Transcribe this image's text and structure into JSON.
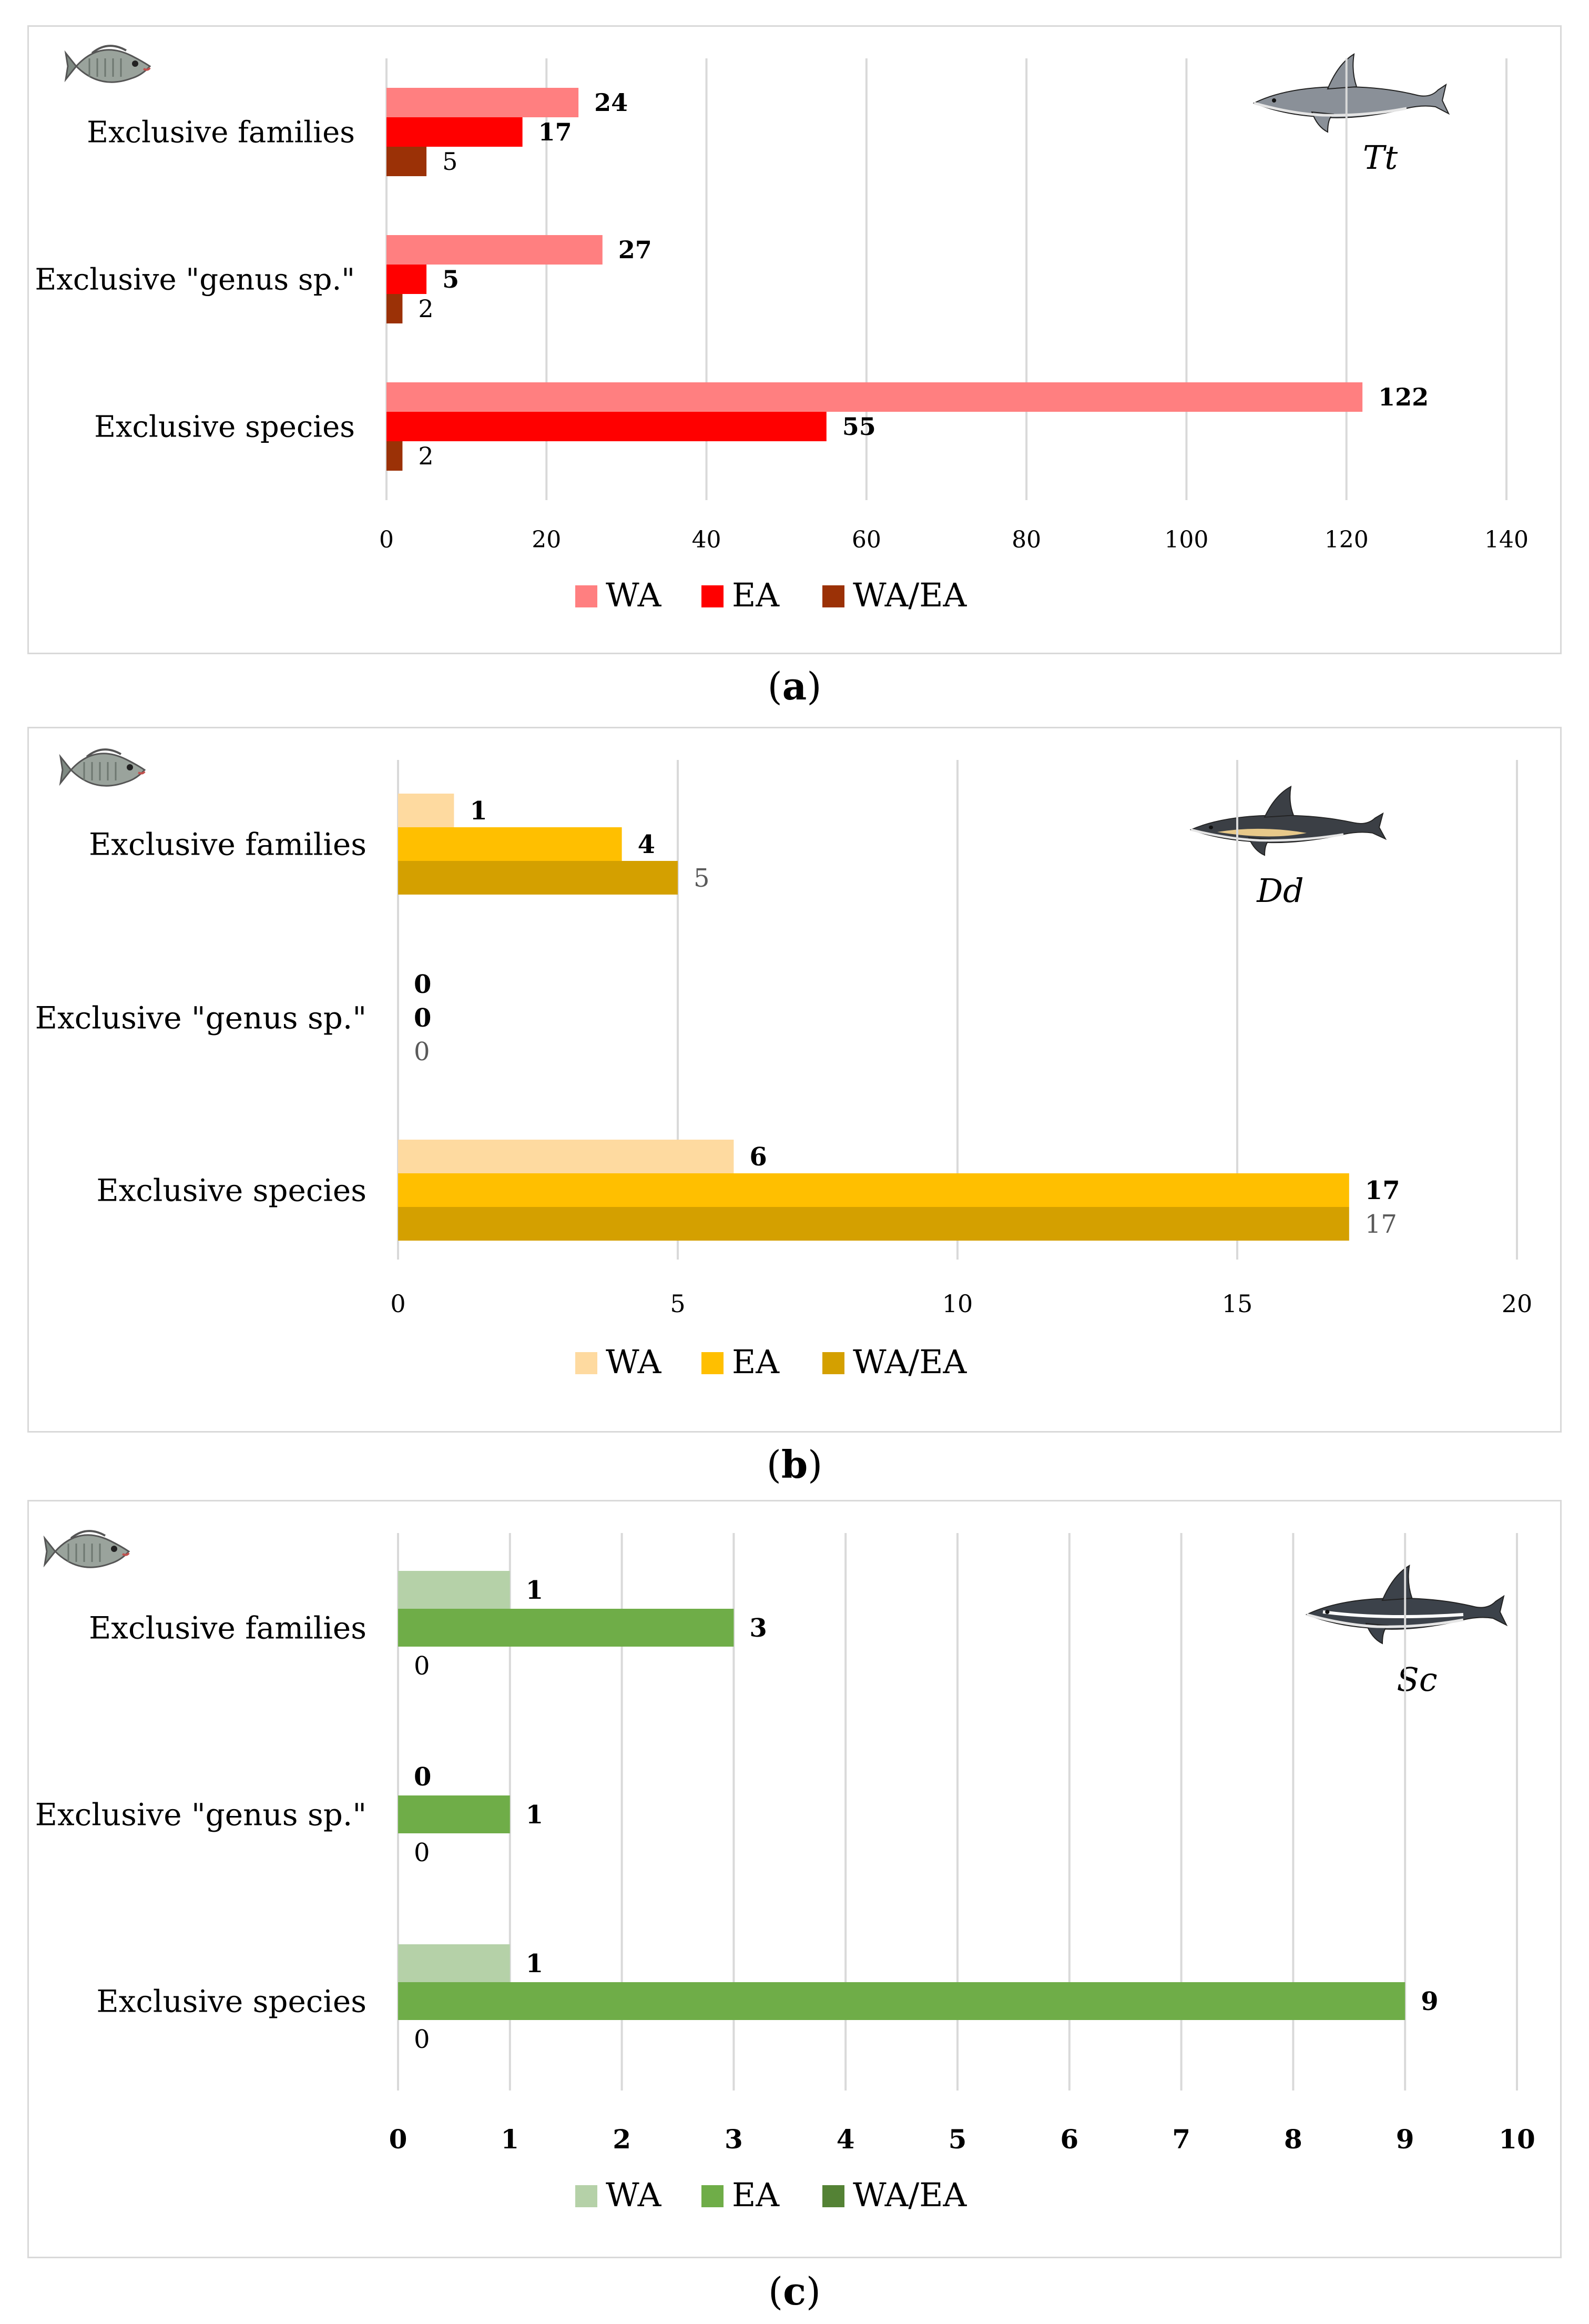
{
  "panels": [
    {
      "caption_letter": "a",
      "species_label": "Tt",
      "colors": [
        "#ff7f80",
        "#ff0000",
        "#9b3106"
      ],
      "chart_data": {
        "type": "bar",
        "orientation": "horizontal",
        "categories": [
          "Exclusive families",
          "Exclusive \"genus sp.\"",
          "Exclusive species"
        ],
        "series": [
          {
            "name": "WA",
            "values": [
              24,
              27,
              122
            ]
          },
          {
            "name": "EA",
            "values": [
              17,
              5,
              55
            ]
          },
          {
            "name": "WA/EA",
            "values": [
              5,
              2,
              2
            ]
          }
        ],
        "xlim": [
          0,
          140
        ],
        "xticks": [
          0,
          20,
          40,
          60,
          80,
          100,
          120,
          140
        ],
        "grid": true,
        "legend": "bottom"
      }
    },
    {
      "caption_letter": "b",
      "species_label": "Dd",
      "colors": [
        "#fedaa0",
        "#ffbf00",
        "#d4a000"
      ],
      "chart_data": {
        "type": "bar",
        "orientation": "horizontal",
        "categories": [
          "Exclusive families",
          "Exclusive \"genus sp.\"",
          "Exclusive species"
        ],
        "series": [
          {
            "name": "WA",
            "values": [
              1,
              0,
              6
            ]
          },
          {
            "name": "EA",
            "values": [
              4,
              0,
              17
            ]
          },
          {
            "name": "WA/EA",
            "values": [
              5,
              0,
              17
            ]
          }
        ],
        "xlim": [
          0,
          20
        ],
        "xticks": [
          0,
          5,
          10,
          15,
          20
        ],
        "grid": true,
        "legend": "bottom"
      }
    },
    {
      "caption_letter": "c",
      "species_label": "Sc",
      "colors": [
        "#b5d1a8",
        "#6fad48",
        "#548235"
      ],
      "chart_data": {
        "type": "bar",
        "orientation": "horizontal",
        "categories": [
          "Exclusive families",
          "Exclusive \"genus sp.\"",
          "Exclusive species"
        ],
        "series": [
          {
            "name": "WA",
            "values": [
              1,
              0,
              1
            ]
          },
          {
            "name": "EA",
            "values": [
              3,
              1,
              9
            ]
          },
          {
            "name": "WA/EA",
            "values": [
              0,
              0,
              0
            ]
          }
        ],
        "xlim": [
          0,
          10
        ],
        "xticks": [
          0,
          1,
          2,
          3,
          4,
          5,
          6,
          7,
          8,
          9,
          10
        ],
        "grid": true,
        "legend": "bottom"
      }
    }
  ]
}
